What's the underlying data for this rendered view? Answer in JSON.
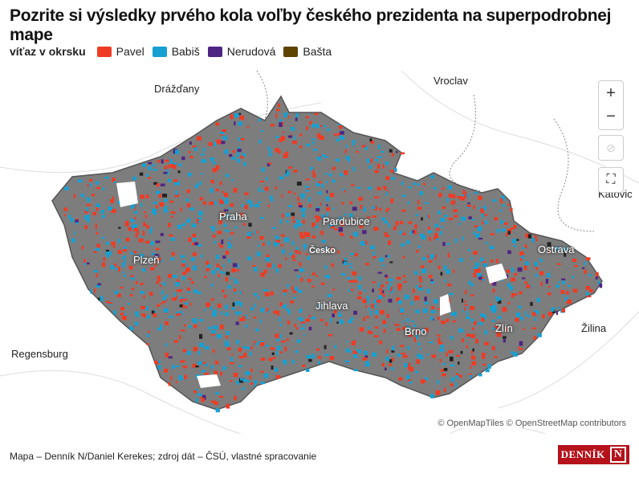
{
  "title": "Pozrite si výsledky prvého kola voľby českého prezidenta na superpodrobnej mape",
  "legend": {
    "label": "víťaz v okrsku",
    "items": [
      {
        "name": "Pavel",
        "color": "#ef3b24"
      },
      {
        "name": "Babiš",
        "color": "#16a0d2"
      },
      {
        "name": "Nerudová",
        "color": "#4f2583"
      },
      {
        "name": "Bašta",
        "color": "#5e4300"
      }
    ]
  },
  "map": {
    "labels": {
      "drazdany": "Drážďany",
      "vroclav": "Vroclav",
      "praha": "Praha",
      "pardubice": "Pardubice",
      "cesko": "Česko",
      "plzen": "Plzeň",
      "ostrava": "Ostrava",
      "katovice": "Katovic",
      "jihlava": "Jihlava",
      "brno": "Brno",
      "zlin": "Zlín",
      "zilina": "Žilina",
      "regensburg": "Regensburg"
    },
    "base_color": "#7d7d7d"
  },
  "controls": {
    "zoom_in": "+",
    "zoom_out": "−"
  },
  "attribution": "© OpenMapTiles © OpenStreetMap contributors",
  "footer": "Mapa – Denník N/Daniel Kerekes; zdroj dát – ČSÚ, vlastné spracovanie",
  "logo": "DENNÍK N"
}
